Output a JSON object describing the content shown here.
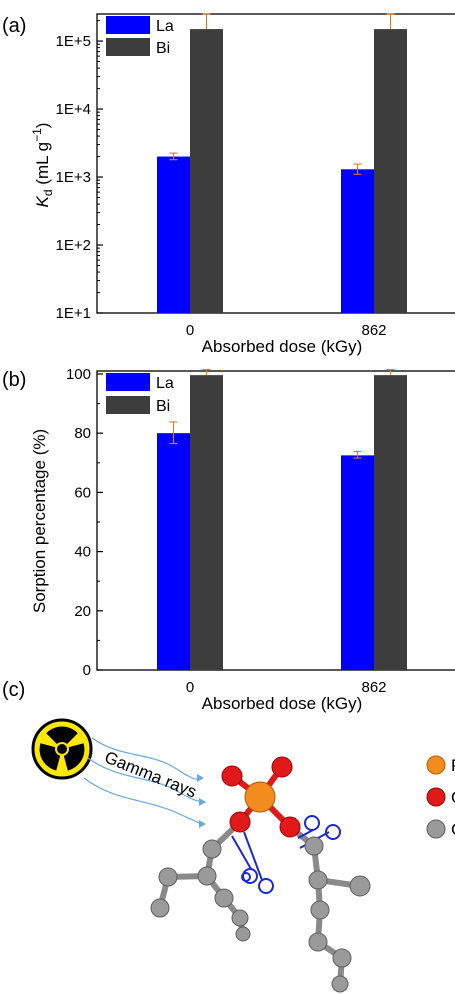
{
  "panels": {
    "a": "(a)",
    "b": "(b)",
    "c": "(c)"
  },
  "colors": {
    "La": "#0000ff",
    "Bi": "#3d3d3d",
    "error": "#e07b1b"
  },
  "chart_data": [
    {
      "type": "bar",
      "yscale": "log",
      "categories": [
        "0",
        "862"
      ],
      "series": [
        {
          "name": "La",
          "values": [
            2000,
            1300
          ],
          "errors": [
            [
              1800,
              2250
            ],
            [
              1100,
              1550
            ]
          ]
        },
        {
          "name": "Bi",
          "values": [
            150000,
            150000
          ],
          "errors": [
            [
              150000,
              250000
            ],
            [
              150000,
              250000
            ]
          ]
        }
      ],
      "xlabel": "Absorbed dose (kGy)",
      "ylabel": "K_d (mL g^-1)",
      "ylabel_main": "K",
      "ylabel_sub": "d",
      "ylabel_rest": " (mL g",
      "ylabel_sup": "−1",
      "ylabel_end": ")",
      "ylim": [
        10,
        250000
      ],
      "yticks": [
        10,
        100,
        1000,
        10000,
        100000
      ],
      "yticklabels": [
        "1E+1",
        "1E+2",
        "1E+3",
        "1E+4",
        "1E+5"
      ],
      "legend": "top-left"
    },
    {
      "type": "bar",
      "categories": [
        "0",
        "862"
      ],
      "series": [
        {
          "name": "La",
          "values": [
            80,
            72.5
          ],
          "errors": [
            [
              76.5,
              83.8
            ],
            [
              71.6,
              73.8
            ]
          ]
        },
        {
          "name": "Bi",
          "values": [
            99.6,
            99.6
          ],
          "errors": [
            [
              99.6,
              101.5
            ],
            [
              99.6,
              101.5
            ]
          ]
        }
      ],
      "xlabel": "Absorbed dose (kGy)",
      "ylabel": "Sorption percentage (%)",
      "ylim": [
        0,
        101
      ],
      "yticks": [
        0,
        20,
        40,
        60,
        80,
        100
      ],
      "yticklabels": [
        "0",
        "20",
        "40",
        "60",
        "80",
        "100"
      ],
      "legend": "top-left"
    }
  ],
  "diagram": {
    "arrow_label": "Gamma rays",
    "legend_letters": [
      "P",
      "O",
      "C"
    ],
    "legend_colors": [
      "#f28c1e",
      "#e01a1a",
      "#9a9a9a"
    ]
  }
}
